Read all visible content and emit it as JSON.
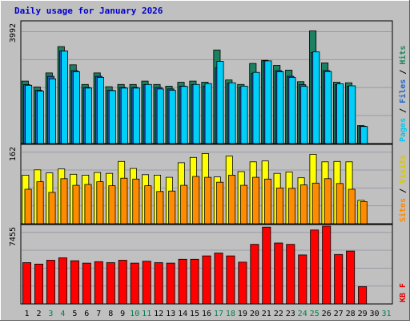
{
  "chart_data": {
    "type": "bar",
    "title": "Daily usage for January 2026",
    "categories": [
      "1",
      "2",
      "3",
      "4",
      "5",
      "6",
      "7",
      "8",
      "9",
      "10",
      "11",
      "12",
      "13",
      "14",
      "15",
      "16",
      "17",
      "18",
      "19",
      "20",
      "21",
      "22",
      "23",
      "24",
      "25",
      "26",
      "27",
      "28",
      "29",
      "30",
      "31"
    ],
    "weekend_days": [
      "3",
      "4",
      "10",
      "11",
      "17",
      "18",
      "24",
      "25",
      "31"
    ],
    "panels": [
      {
        "name": "top",
        "ymax": 3992,
        "ymax_label": "3992",
        "side_label_parts": [
          {
            "text": "Pages",
            "color": "#00c8f0"
          },
          {
            "text": " / ",
            "color": "#000000"
          },
          {
            "text": "Files",
            "color": "#2a66c8"
          },
          {
            "text": " / ",
            "color": "#000000"
          },
          {
            "text": "Hits",
            "color": "#1f8a5e"
          }
        ],
        "series": [
          {
            "name": "Hits",
            "color": "#1d8060",
            "values": [
              2230,
              2020,
              2520,
              3460,
              2810,
              2110,
              2520,
              2030,
              2110,
              2110,
              2230,
              2110,
              2050,
              2190,
              2230,
              2190,
              3340,
              2270,
              2110,
              2860,
              2970,
              2790,
              2620,
              2210,
              4020,
              2880,
              2190,
              2170,
              640,
              null,
              null
            ]
          },
          {
            "name": "Files",
            "color": "#1f5db8",
            "values": [
              2100,
              1900,
              2400,
              3300,
              2600,
              2000,
              2400,
              1900,
              2000,
              2000,
              2100,
              2000,
              1950,
              2050,
              2100,
              2050,
              2700,
              2150,
              2000,
              2500,
              2950,
              2600,
              2400,
              2100,
              3250,
              2600,
              2100,
              2050,
              620,
              null,
              null
            ]
          },
          {
            "name": "Pages",
            "color": "#00d0f8",
            "values": [
              2080,
              1870,
              2310,
              3300,
              2560,
              1980,
              2360,
              1890,
              1980,
              1980,
              2110,
              1950,
              1900,
              2040,
              2110,
              2140,
              2930,
              2170,
              2050,
              2540,
              2950,
              2560,
              2360,
              2040,
              3270,
              2570,
              2130,
              2060,
              610,
              null,
              null
            ]
          }
        ]
      },
      {
        "name": "middle",
        "ymax": 162,
        "ymax_label": "162",
        "side_label_parts": [
          {
            "text": "Sites",
            "color": "#ff8800"
          },
          {
            "text": " / ",
            "color": "#000000"
          },
          {
            "text": "Visits",
            "color": "#d8c800"
          }
        ],
        "series": [
          {
            "name": "Visits",
            "color": "#ffff00",
            "values": [
              110,
              122,
              115,
              124,
              112,
              110,
              116,
              114,
              141,
              125,
              111,
              110,
              105,
              138,
              150,
              159,
              106,
              153,
              118,
              140,
              142,
              114,
              117,
              104,
              157,
              140,
              141,
              140,
              53,
              null,
              null
            ]
          },
          {
            "name": "Sites",
            "color": "#ff8c00",
            "values": [
              78,
              95,
              71,
              102,
              87,
              89,
              95,
              86,
              103,
              101,
              86,
              73,
              74,
              87,
              107,
              105,
              94,
              110,
              87,
              105,
              101,
              81,
              80,
              88,
              92,
              102,
              91,
              78,
              50,
              null,
              null
            ]
          }
        ]
      },
      {
        "name": "bottom",
        "ymax": 7455,
        "ymax_label": "7455",
        "side_label_parts": [
          {
            "text": "KB F",
            "color": "#e00000"
          }
        ],
        "series": [
          {
            "name": "KB F",
            "color": "#ff0000",
            "values": [
              4300,
              4150,
              4550,
              4800,
              4500,
              4250,
              4400,
              4300,
              4550,
              4250,
              4450,
              4300,
              4250,
              4650,
              4650,
              5000,
              5300,
              5000,
              4350,
              6200,
              8000,
              6350,
              6200,
              5100,
              7700,
              8100,
              5150,
              5500,
              1800,
              null,
              null
            ]
          }
        ]
      }
    ]
  }
}
